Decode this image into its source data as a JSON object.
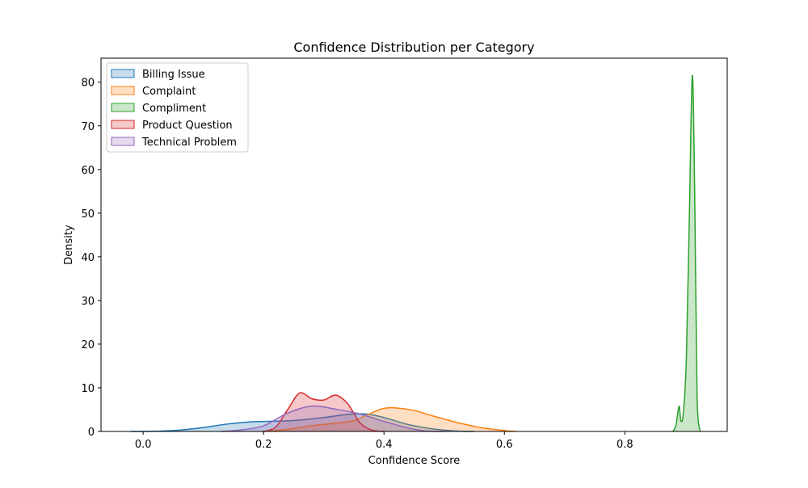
{
  "chart_data": {
    "type": "area",
    "title": "Confidence Distribution per Category",
    "xlabel": "Confidence Score",
    "ylabel": "Density",
    "xlim": [
      -0.07,
      0.97
    ],
    "ylim": [
      0,
      85.5
    ],
    "xticks": [
      0.0,
      0.2,
      0.4,
      0.6,
      0.8
    ],
    "yticks": [
      0,
      10,
      20,
      30,
      40,
      50,
      60,
      70,
      80
    ],
    "grid": false,
    "legend_position": "top-left",
    "series": [
      {
        "name": "Billing Issue",
        "color": "#1f77b4",
        "points": [
          [
            -0.02,
            0
          ],
          [
            0.02,
            0.05
          ],
          [
            0.06,
            0.3
          ],
          [
            0.1,
            0.9
          ],
          [
            0.14,
            1.7
          ],
          [
            0.18,
            2.2
          ],
          [
            0.22,
            2.35
          ],
          [
            0.26,
            2.6
          ],
          [
            0.3,
            3.2
          ],
          [
            0.34,
            3.9
          ],
          [
            0.37,
            4.0
          ],
          [
            0.4,
            3.2
          ],
          [
            0.44,
            1.6
          ],
          [
            0.48,
            0.6
          ],
          [
            0.52,
            0.1
          ],
          [
            0.55,
            0
          ]
        ]
      },
      {
        "name": "Complaint",
        "color": "#ff7f0e",
        "points": [
          [
            0.2,
            0
          ],
          [
            0.24,
            0.5
          ],
          [
            0.28,
            1.3
          ],
          [
            0.32,
            1.9
          ],
          [
            0.35,
            2.5
          ],
          [
            0.38,
            4.3
          ],
          [
            0.4,
            5.3
          ],
          [
            0.42,
            5.4
          ],
          [
            0.45,
            4.8
          ],
          [
            0.48,
            3.6
          ],
          [
            0.52,
            2.1
          ],
          [
            0.56,
            0.9
          ],
          [
            0.6,
            0.2
          ],
          [
            0.62,
            0
          ]
        ]
      },
      {
        "name": "Compliment",
        "color": "#2ca02c",
        "points": [
          [
            0.88,
            0
          ],
          [
            0.885,
            1.5
          ],
          [
            0.89,
            5.8
          ],
          [
            0.893,
            2.5
          ],
          [
            0.897,
            4.0
          ],
          [
            0.902,
            16
          ],
          [
            0.907,
            48
          ],
          [
            0.912,
            81.5
          ],
          [
            0.916,
            55
          ],
          [
            0.92,
            8
          ],
          [
            0.925,
            0
          ]
        ]
      },
      {
        "name": "Product Question",
        "color": "#d62728",
        "points": [
          [
            0.2,
            0
          ],
          [
            0.22,
            1.0
          ],
          [
            0.24,
            5.0
          ],
          [
            0.26,
            8.8
          ],
          [
            0.28,
            7.5
          ],
          [
            0.3,
            7.2
          ],
          [
            0.32,
            8.3
          ],
          [
            0.34,
            6.3
          ],
          [
            0.36,
            2.0
          ],
          [
            0.38,
            0.3
          ],
          [
            0.4,
            0
          ]
        ]
      },
      {
        "name": "Technical Problem",
        "color": "#9467bd",
        "points": [
          [
            0.13,
            0
          ],
          [
            0.16,
            0.3
          ],
          [
            0.2,
            1.3
          ],
          [
            0.24,
            4.2
          ],
          [
            0.28,
            5.8
          ],
          [
            0.32,
            5.1
          ],
          [
            0.36,
            4.0
          ],
          [
            0.4,
            2.3
          ],
          [
            0.44,
            0.8
          ],
          [
            0.47,
            0.1
          ],
          [
            0.5,
            0
          ]
        ]
      }
    ]
  }
}
